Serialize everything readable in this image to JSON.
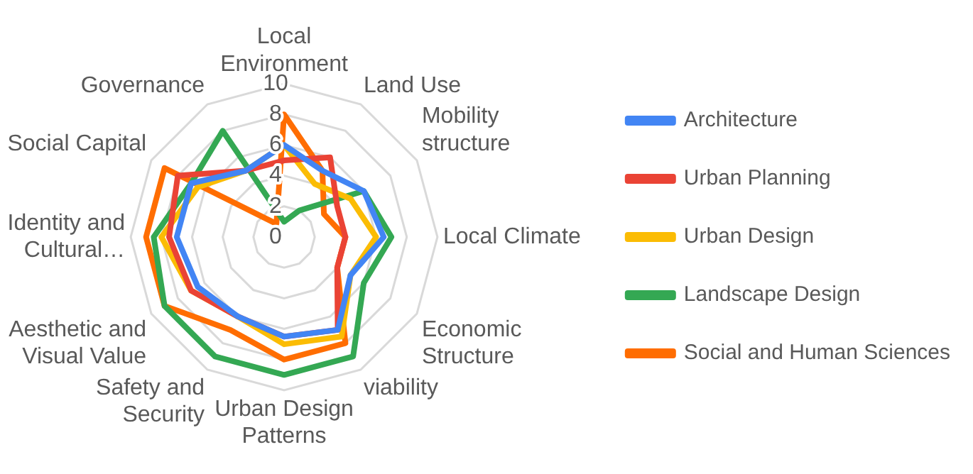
{
  "chart_data": {
    "type": "radar",
    "categories": [
      "Local Environment",
      "Land Use",
      "Mobility structure",
      "Local Climate",
      "Economic Structure",
      "viability",
      "Urban Design Patterns",
      "Safety and Security",
      "Aesthetic and Visual Value",
      "Identity and Cultural…",
      "Social Capital",
      "Governance"
    ],
    "series": [
      {
        "name": "Architecture",
        "color": "#4285f4",
        "values": [
          6,
          5,
          6,
          6.5,
          5,
          7,
          6.5,
          6,
          6.5,
          7,
          7,
          5
        ]
      },
      {
        "name": "Urban Planning",
        "color": "#ea4335",
        "values": [
          5,
          6,
          4,
          4,
          4,
          7,
          6.5,
          6,
          7,
          7.5,
          8,
          5
        ]
      },
      {
        "name": "Urban Design",
        "color": "#fbbc04",
        "values": [
          6,
          4,
          5,
          6,
          5,
          7.5,
          7,
          6,
          7,
          8,
          6.5,
          5
        ]
      },
      {
        "name": "Landscape Design",
        "color": "#34a853",
        "values": [
          1,
          2,
          6,
          7,
          6,
          9,
          9,
          9,
          9,
          8.5,
          7,
          8
        ]
      },
      {
        "name": "Social and Human Sciences",
        "color": "#ff6d01",
        "values": [
          8,
          5,
          3,
          4,
          4,
          8,
          8,
          7,
          9,
          9,
          9,
          1
        ]
      }
    ],
    "ylim": [
      0,
      10
    ],
    "yticks": [
      0,
      2,
      4,
      6,
      8,
      10
    ],
    "grid": true,
    "legend": "right",
    "marker": "none",
    "line_style": "solid"
  }
}
